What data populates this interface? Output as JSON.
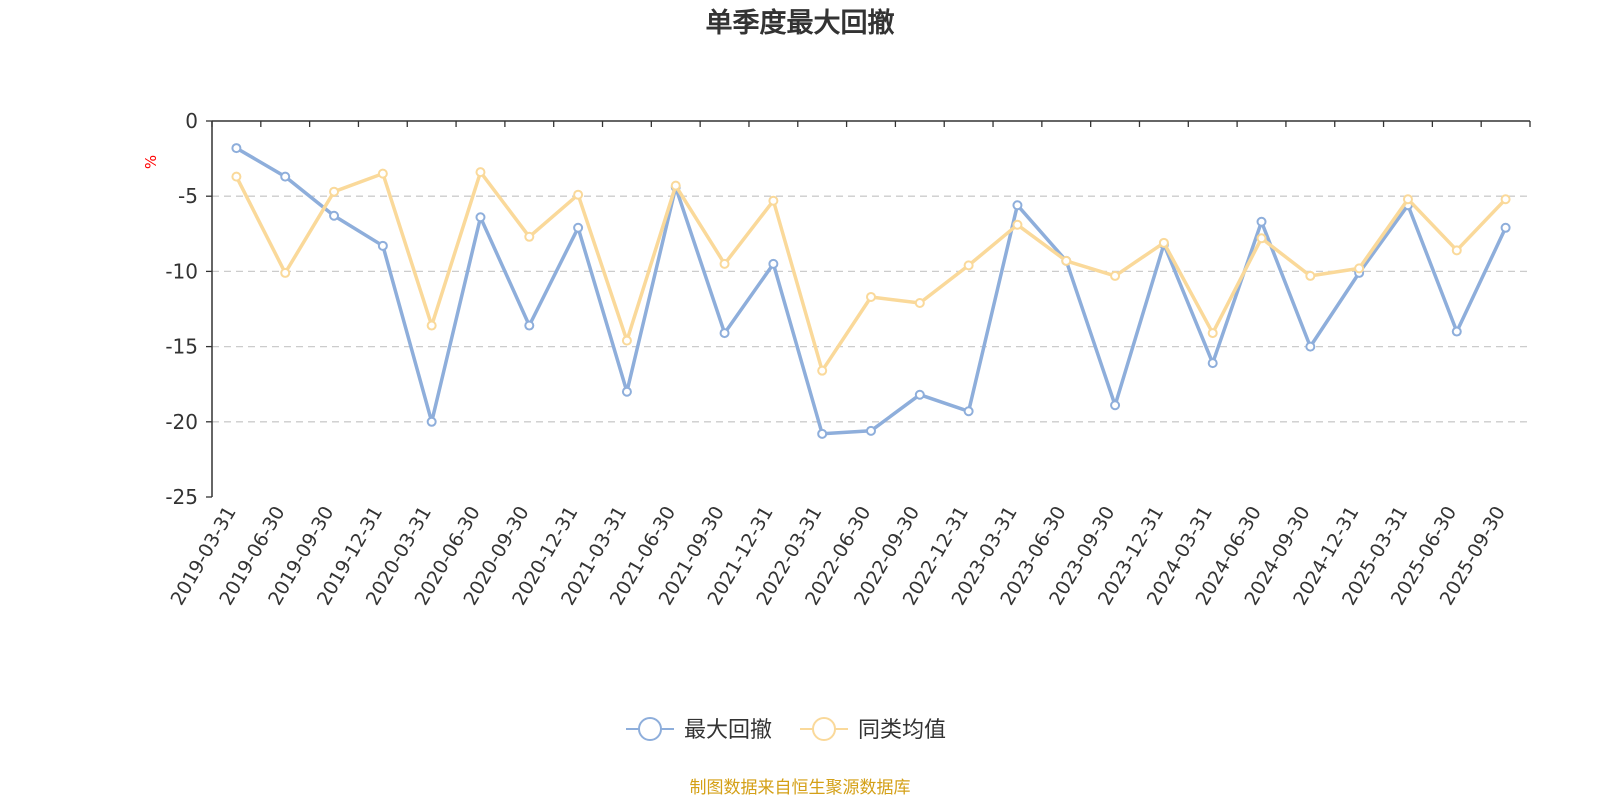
{
  "chart_data": {
    "type": "line",
    "title": "单季度最大回撤",
    "ylabel": "%",
    "ylim": [
      -25,
      0
    ],
    "yticks": [
      0,
      -5,
      -10,
      -15,
      -20,
      -25
    ],
    "grid": true,
    "legend_position": "bottom-center",
    "categories": [
      "2019-03-31",
      "2019-06-30",
      "2019-09-30",
      "2019-12-31",
      "2020-03-31",
      "2020-06-30",
      "2020-09-30",
      "2020-12-31",
      "2021-03-31",
      "2021-06-30",
      "2021-09-30",
      "2021-12-31",
      "2022-03-31",
      "2022-06-30",
      "2022-09-30",
      "2022-12-31",
      "2023-03-31",
      "2023-06-30",
      "2023-09-30",
      "2023-12-31",
      "2024-03-31",
      "2024-06-30",
      "2024-09-30",
      "2024-12-31",
      "2025-03-31",
      "2025-06-30",
      "2025-09-30"
    ],
    "series": [
      {
        "name": "最大回撤",
        "color": "#8eaedb",
        "values": [
          -1.8,
          -3.7,
          -6.3,
          -8.3,
          -20.0,
          -6.4,
          -13.6,
          -7.1,
          -18.0,
          -4.4,
          -14.1,
          -9.5,
          -20.8,
          -20.6,
          -18.2,
          -19.3,
          -5.6,
          -9.3,
          -18.9,
          -8.2,
          -16.1,
          -6.7,
          -15.0,
          -10.1,
          -5.6,
          -14.0,
          -7.1
        ]
      },
      {
        "name": "同类均值",
        "color": "#fad99a",
        "values": [
          -3.7,
          -10.1,
          -4.7,
          -3.5,
          -13.6,
          -3.4,
          -7.7,
          -4.9,
          -14.6,
          -4.3,
          -9.5,
          -5.3,
          -16.6,
          -11.7,
          -12.1,
          -9.6,
          -6.9,
          -9.3,
          -10.3,
          -8.1,
          -14.1,
          -7.8,
          -10.3,
          -9.8,
          -5.2,
          -8.6,
          -5.2
        ]
      }
    ],
    "source": "制图数据来自恒生聚源数据库"
  },
  "colors": {
    "axis": "#333333",
    "grid": "#cccccc",
    "source_text": "#d4a017",
    "unit_text": "#ff0000"
  }
}
